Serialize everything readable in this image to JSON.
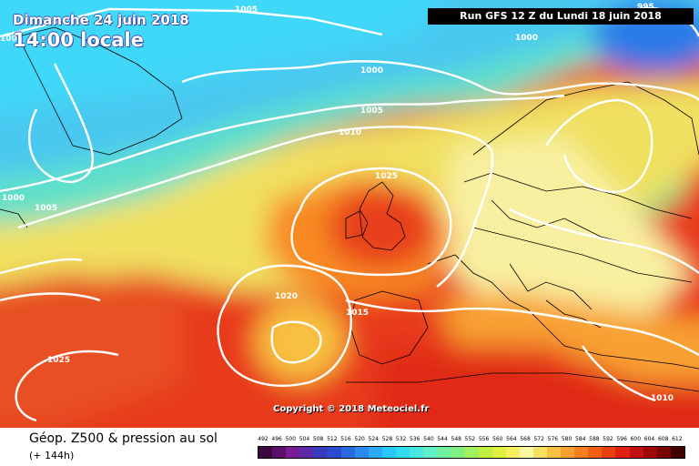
{
  "header": {
    "date": "Dimanche 24 juin 2018",
    "time": "14:00 locale",
    "run": "Run GFS 12 Z du Lundi 18 juin 2018"
  },
  "copyright": "Copyright © 2018 Meteociel.fr",
  "footer": {
    "field": "Géop. Z500 & pression au sol",
    "lead": "(+ 144h)"
  },
  "colors": {
    "land_border": "#000000",
    "isobar": "#ffffff"
  },
  "isobar_labels": [
    {
      "text": "1005",
      "id": "isobar-label-1005-top"
    },
    {
      "text": "995",
      "id": "isobar-label-995"
    },
    {
      "text": "1000",
      "id": "isobar-label-1000-ne"
    },
    {
      "text": "100",
      "id": "isobar-label-100-edge"
    },
    {
      "text": "1000",
      "id": "isobar-label-1000-north"
    },
    {
      "text": "1005",
      "id": "isobar-label-1005-north"
    },
    {
      "text": "1010",
      "id": "isobar-label-1010"
    },
    {
      "text": "1025",
      "id": "isobar-label-1025"
    },
    {
      "text": "1000",
      "id": "isobar-label-1000-west"
    },
    {
      "text": "1005",
      "id": "isobar-label-1005-west"
    },
    {
      "text": "1020",
      "id": "isobar-label-1020"
    },
    {
      "text": "1015",
      "id": "isobar-label-1015"
    },
    {
      "text": "1025",
      "id": "isobar-label-1025-sw"
    },
    {
      "text": "1010",
      "id": "isobar-label-1010-se"
    }
  ],
  "scale": {
    "labels": [
      "492",
      "496",
      "500",
      "504",
      "508",
      "512",
      "516",
      "520",
      "524",
      "528",
      "532",
      "536",
      "540",
      "544",
      "548",
      "552",
      "556",
      "560",
      "564",
      "568",
      "572",
      "576",
      "580",
      "584",
      "588",
      "592",
      "596",
      "600",
      "604",
      "608",
      "612"
    ],
    "colors": [
      "#3a0a3e",
      "#5a0f6a",
      "#7a1a96",
      "#5a2aa8",
      "#3a3ac0",
      "#2a4ad0",
      "#2a6ae0",
      "#2a8af0",
      "#2aaaf8",
      "#2ac8f8",
      "#30dcf0",
      "#48e8e0",
      "#60f0c8",
      "#70f0a0",
      "#80f080",
      "#a0f060",
      "#c0f040",
      "#e0f040",
      "#f8f060",
      "#f8f8a0",
      "#f8e060",
      "#f8c040",
      "#f8a030",
      "#f88020",
      "#f06010",
      "#e84010",
      "#e02010",
      "#c01010",
      "#a00808",
      "#780404",
      "#400000"
    ]
  }
}
